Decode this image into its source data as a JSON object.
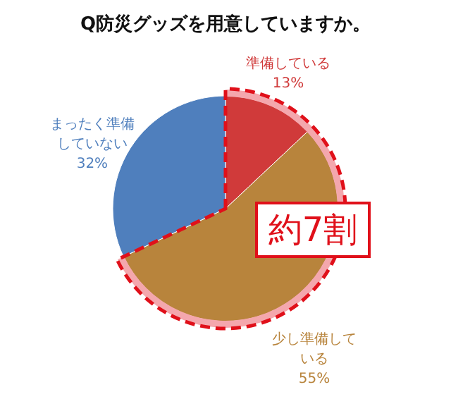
{
  "chart_data": {
    "type": "pie",
    "title": "Q防災グッズを用意していますか。",
    "categories": [
      "準備している",
      "少し準備している",
      "まったく準備していない"
    ],
    "values": [
      13,
      55,
      32
    ],
    "value_labels": [
      "13%",
      "55%",
      "32%"
    ],
    "colors": [
      "#d03a3a",
      "#b8843c",
      "#4f7fbd"
    ],
    "annotations": [
      "約7割"
    ]
  }
}
